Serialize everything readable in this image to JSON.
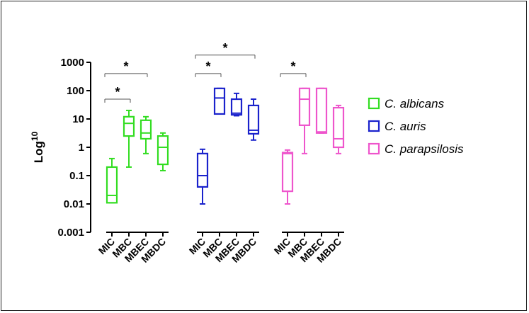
{
  "chart_data": {
    "type": "box",
    "ylabel": "Log",
    "ylabel_superscript": "10",
    "yscale": "log",
    "ylim": [
      0.001,
      1000
    ],
    "yticks": [
      "0.001",
      "0.01",
      "0.1",
      "1",
      "10",
      "100",
      "1000"
    ],
    "ytick_values": [
      0.001,
      0.01,
      0.1,
      1,
      10,
      100,
      1000
    ],
    "legend_position": "right",
    "groups": [
      {
        "name": "C. albicans",
        "color": "#33dd22",
        "boxes": [
          {
            "category": "MIC",
            "min": 0.011,
            "q1": 0.011,
            "median": 0.02,
            "q3": 0.2,
            "max": 0.4
          },
          {
            "category": "MBC",
            "min": 0.2,
            "q1": 2.5,
            "median": 7,
            "q3": 12,
            "max": 20
          },
          {
            "category": "MBEC",
            "min": 0.6,
            "q1": 2,
            "median": 3.2,
            "q3": 9,
            "max": 12
          },
          {
            "category": "MBDC",
            "min": 0.15,
            "q1": 0.25,
            "median": 1,
            "q3": 2.5,
            "max": 3.2
          }
        ]
      },
      {
        "name": "C. auris",
        "color": "#1a22cc",
        "boxes": [
          {
            "category": "MIC",
            "min": 0.01,
            "q1": 0.04,
            "median": 0.1,
            "q3": 0.6,
            "max": 0.85
          },
          {
            "category": "MBC",
            "min": 15,
            "q1": 15,
            "median": 55,
            "q3": 120,
            "max": 120
          },
          {
            "category": "MBEC",
            "min": 13,
            "q1": 14,
            "median": 16,
            "q3": 50,
            "max": 80
          },
          {
            "category": "MBDC",
            "min": 1.8,
            "q1": 3,
            "median": 4,
            "q3": 30,
            "max": 50
          }
        ]
      },
      {
        "name": "C. parapsilosis",
        "color": "#ee55cc",
        "boxes": [
          {
            "category": "MIC",
            "min": 0.01,
            "q1": 0.028,
            "median": 0.6,
            "q3": 0.65,
            "max": 0.8
          },
          {
            "category": "MBC",
            "min": 0.6,
            "q1": 6,
            "median": 50,
            "q3": 120,
            "max": 120
          },
          {
            "category": "MBEC",
            "min": 3.2,
            "q1": 3.2,
            "median": 3.5,
            "q3": 120,
            "max": 120
          },
          {
            "category": "MBDC",
            "min": 0.6,
            "q1": 1,
            "median": 2,
            "q3": 25,
            "max": 30
          }
        ]
      }
    ],
    "significance": [
      {
        "group": 0,
        "from": 0,
        "to": 1,
        "y": 50,
        "label": "*"
      },
      {
        "group": 0,
        "from": 0,
        "to": 2,
        "y": 400,
        "label": "*"
      },
      {
        "group": 1,
        "from": 0,
        "to": 1,
        "y": 400,
        "label": "*"
      },
      {
        "group": 1,
        "from": 0,
        "to": 3,
        "y": 1800,
        "label": "*"
      },
      {
        "group": 2,
        "from": 0,
        "to": 1,
        "y": 400,
        "label": "*"
      }
    ]
  }
}
